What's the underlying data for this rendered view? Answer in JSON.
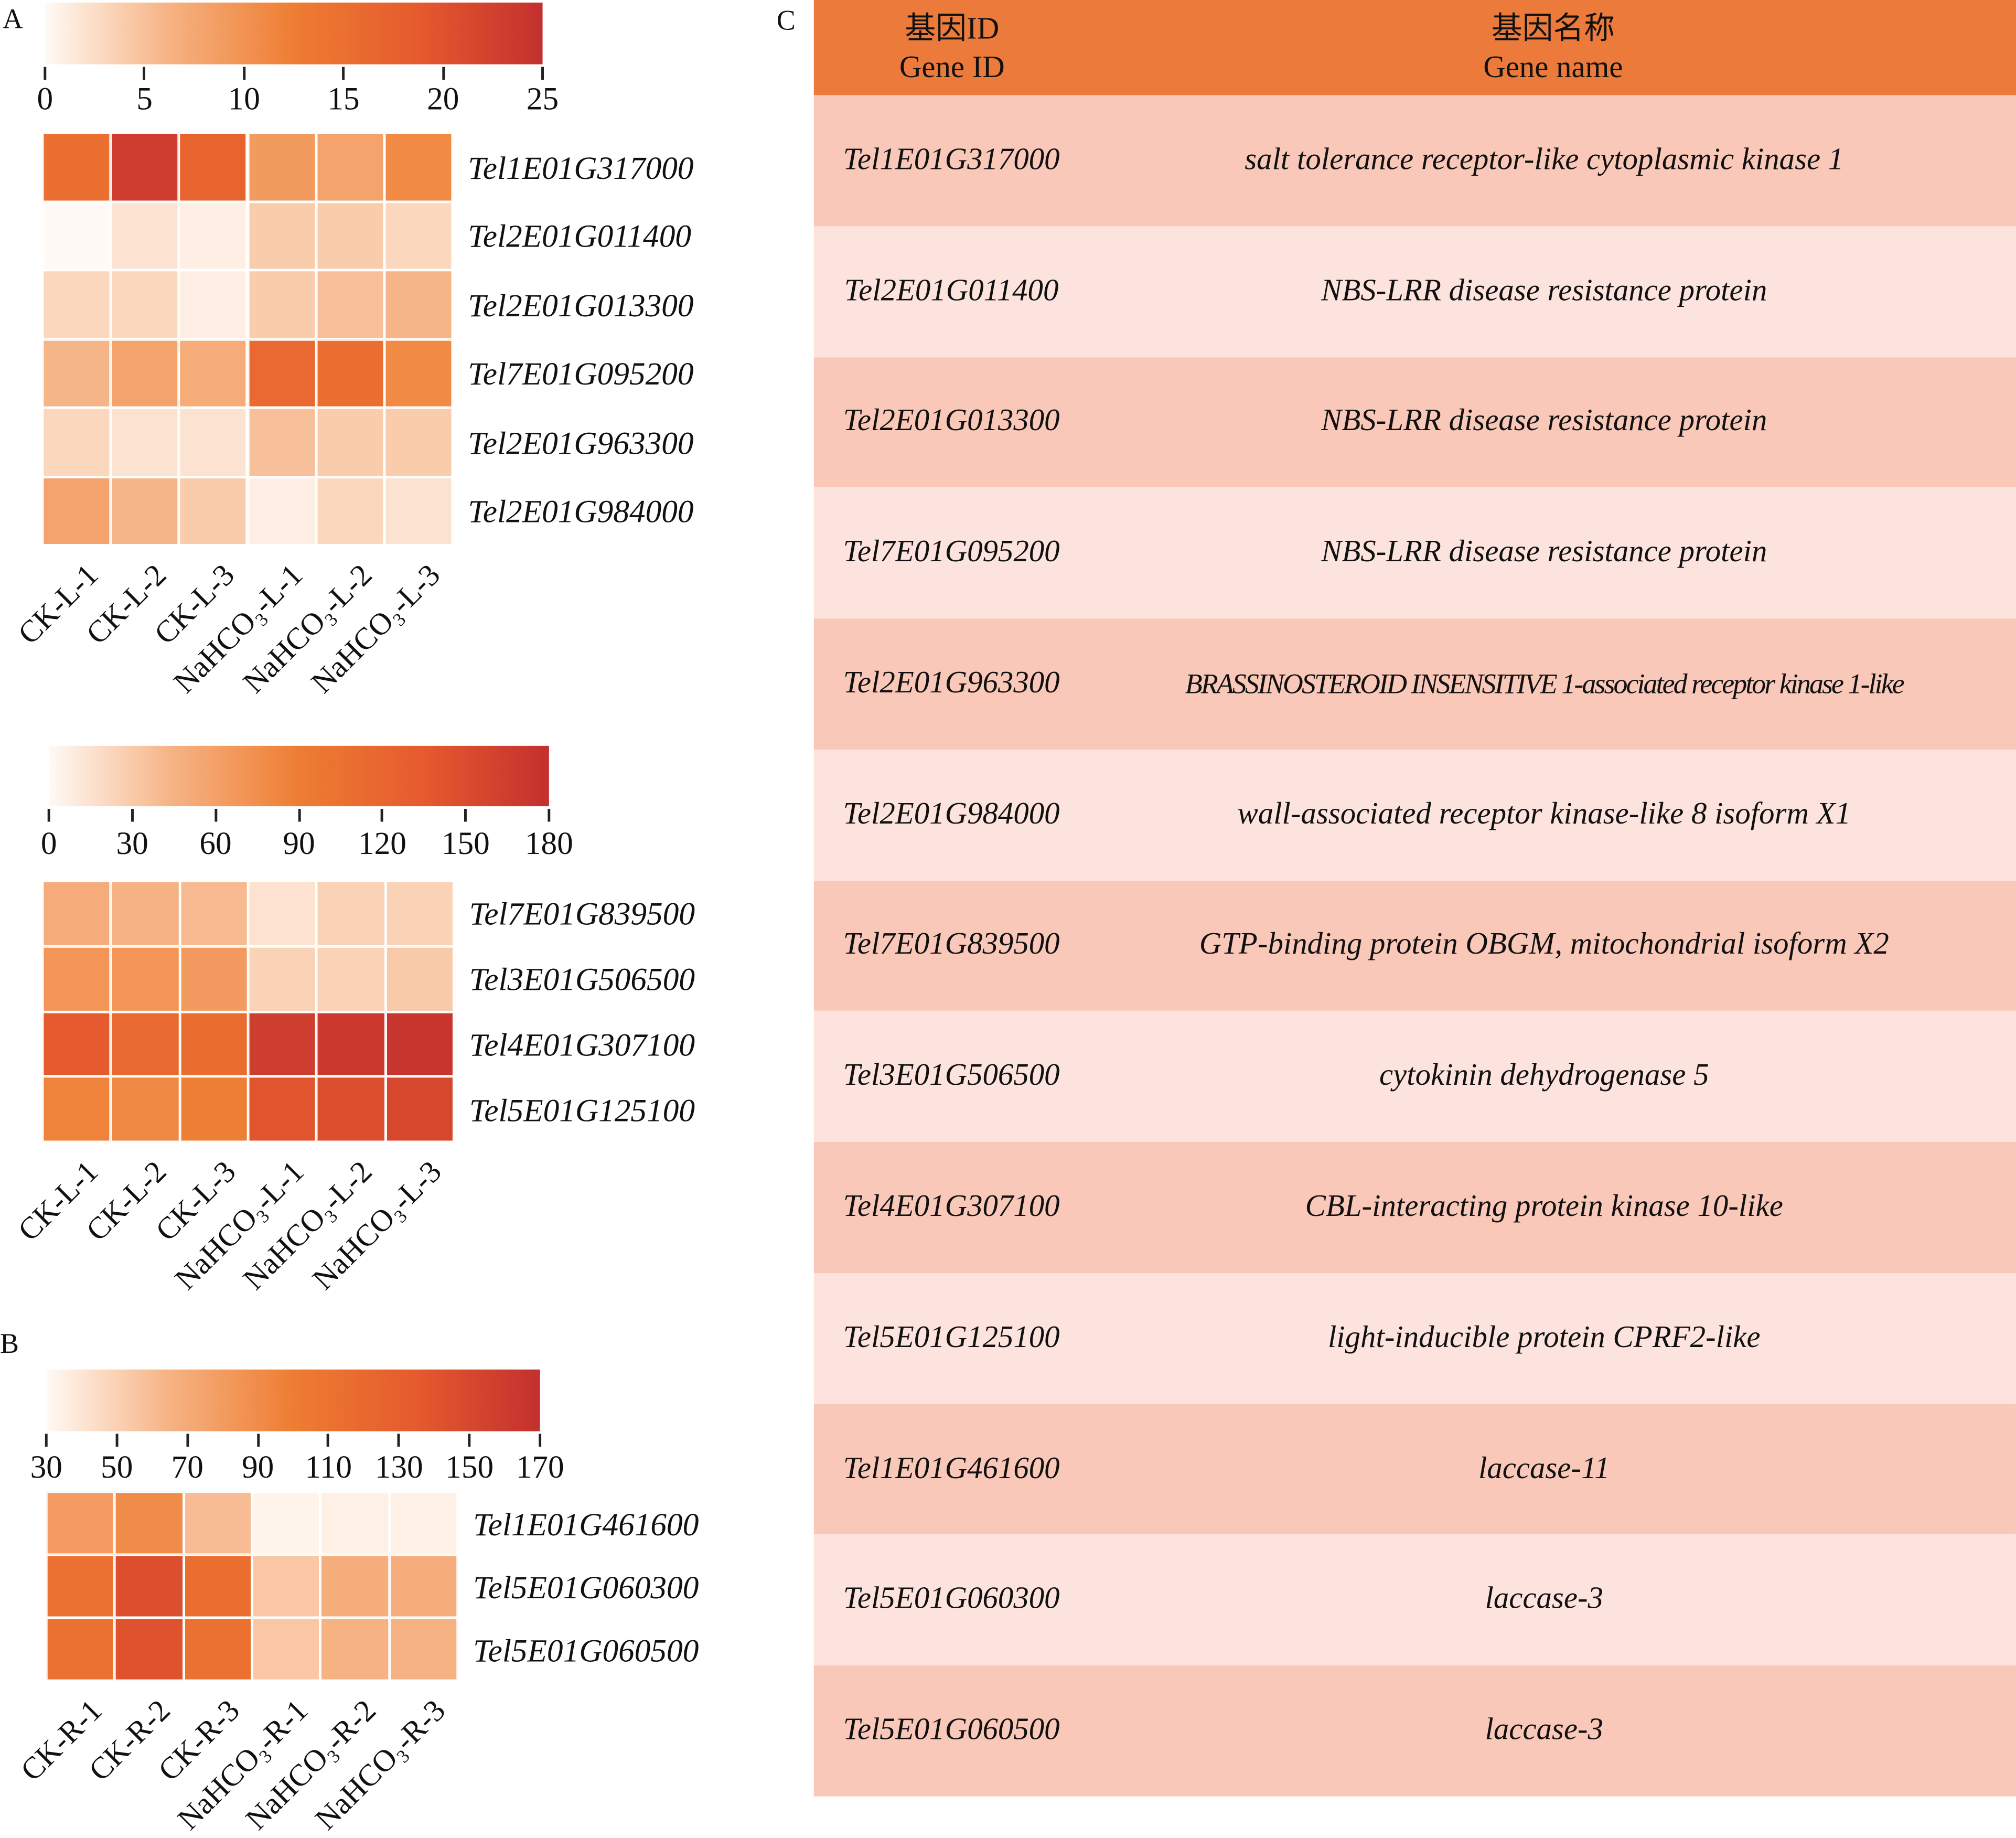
{
  "colors": {
    "header": "#ec7a3a",
    "row_dark": "#f9c8b8",
    "row_light": "#fde3dd",
    "colormap": [
      "#fffaf5",
      "#f6b283",
      "#ee7d32",
      "#e55a2e",
      "#c3302e"
    ]
  },
  "panels": {
    "a": "A",
    "b": "B",
    "c": "C"
  },
  "chart_data": [
    {
      "type": "heatmap",
      "panel": "A",
      "colorbar": {
        "range": [
          0,
          25
        ],
        "ticks": [
          "0",
          "5",
          "10",
          "15",
          "20",
          "25"
        ]
      },
      "columns": [
        "CK-L-1",
        "CK-L-2",
        "CK-L-3",
        "NaHCO₃-L-1",
        "NaHCO₃-L-2",
        "NaHCO₃-L-3"
      ],
      "rows": [
        "Tel1E01G317000",
        "Tel2E01G011400",
        "Tel2E01G013300",
        "Tel7E01G095200",
        "Tel2E01G963300",
        "Tel2E01G984000"
      ],
      "values": [
        [
          15,
          23,
          17,
          9,
          8,
          11
        ],
        [
          0,
          2,
          1,
          4,
          4,
          3
        ],
        [
          3,
          3,
          1,
          4,
          5,
          6
        ],
        [
          6,
          8,
          7,
          16,
          15,
          11
        ],
        [
          3,
          2,
          2,
          5,
          4,
          4
        ],
        [
          8,
          6,
          4,
          1,
          3,
          2
        ]
      ]
    },
    {
      "type": "heatmap",
      "panel": "A",
      "colorbar": {
        "range": [
          0,
          180
        ],
        "ticks": [
          "0",
          "30",
          "60",
          "90",
          "120",
          "150",
          "180"
        ]
      },
      "columns": [
        "CK-L-1",
        "CK-L-2",
        "CK-L-3",
        "NaHCO₃-L-1",
        "NaHCO₃-L-2",
        "NaHCO₃-L-3"
      ],
      "rows": [
        "Tel7E01G839500",
        "Tel3E01G506500",
        "Tel4E01G307100",
        "Tel5E01G125100"
      ],
      "values": [
        [
          50,
          45,
          40,
          15,
          25,
          25
        ],
        [
          70,
          70,
          65,
          25,
          25,
          30
        ],
        [
          135,
          115,
          110,
          165,
          170,
          175
        ],
        [
          85,
          80,
          88,
          140,
          148,
          155
        ]
      ]
    },
    {
      "type": "heatmap",
      "panel": "B",
      "colorbar": {
        "range": [
          30,
          170
        ],
        "ticks": [
          "30",
          "50",
          "70",
          "90",
          "110",
          "130",
          "150",
          "170"
        ]
      },
      "columns": [
        "CK-R-1",
        "CK-R-2",
        "CK-R-3",
        "NaHCO₃-R-1",
        "NaHCO₃-R-2",
        "NaHCO₃-R-3"
      ],
      "rows": [
        "Tel1E01G461600",
        "Tel5E01G060300",
        "Tel5E01G060500"
      ],
      "values": [
        [
          80,
          90,
          60,
          33,
          35,
          35
        ],
        [
          112,
          145,
          115,
          55,
          68,
          68
        ],
        [
          112,
          142,
          112,
          55,
          65,
          65
        ]
      ]
    }
  ],
  "table": {
    "headers": [
      {
        "zh": "基因ID",
        "en": "Gene ID"
      },
      {
        "zh": "基因名称",
        "en": "Gene name"
      }
    ],
    "rows": [
      {
        "id": "Tel1E01G317000",
        "name": "salt tolerance receptor-like cytoplasmic kinase 1"
      },
      {
        "id": "Tel2E01G011400",
        "name": "NBS-LRR disease resistance protein"
      },
      {
        "id": "Tel2E01G013300",
        "name": "NBS-LRR disease resistance protein"
      },
      {
        "id": "Tel7E01G095200",
        "name": "NBS-LRR disease resistance protein"
      },
      {
        "id": "Tel2E01G963300",
        "name": "BRASSINOSTEROID INSENSITIVE 1-associated receptor kinase 1-like"
      },
      {
        "id": "Tel2E01G984000",
        "name": "wall-associated receptor kinase-like 8 isoform X1"
      },
      {
        "id": "Tel7E01G839500",
        "name": "GTP-binding protein OBGM, mitochondrial isoform X2"
      },
      {
        "id": "Tel3E01G506500",
        "name": "cytokinin dehydrogenase 5"
      },
      {
        "id": "Tel4E01G307100",
        "name": "CBL-interacting protein kinase 10-like"
      },
      {
        "id": "Tel5E01G125100",
        "name": "light-inducible protein CPRF2-like"
      },
      {
        "id": "Tel1E01G461600",
        "name": "laccase-11"
      },
      {
        "id": "Tel5E01G060300",
        "name": "laccase-3"
      },
      {
        "id": "Tel5E01G060500",
        "name": "laccase-3"
      }
    ]
  }
}
